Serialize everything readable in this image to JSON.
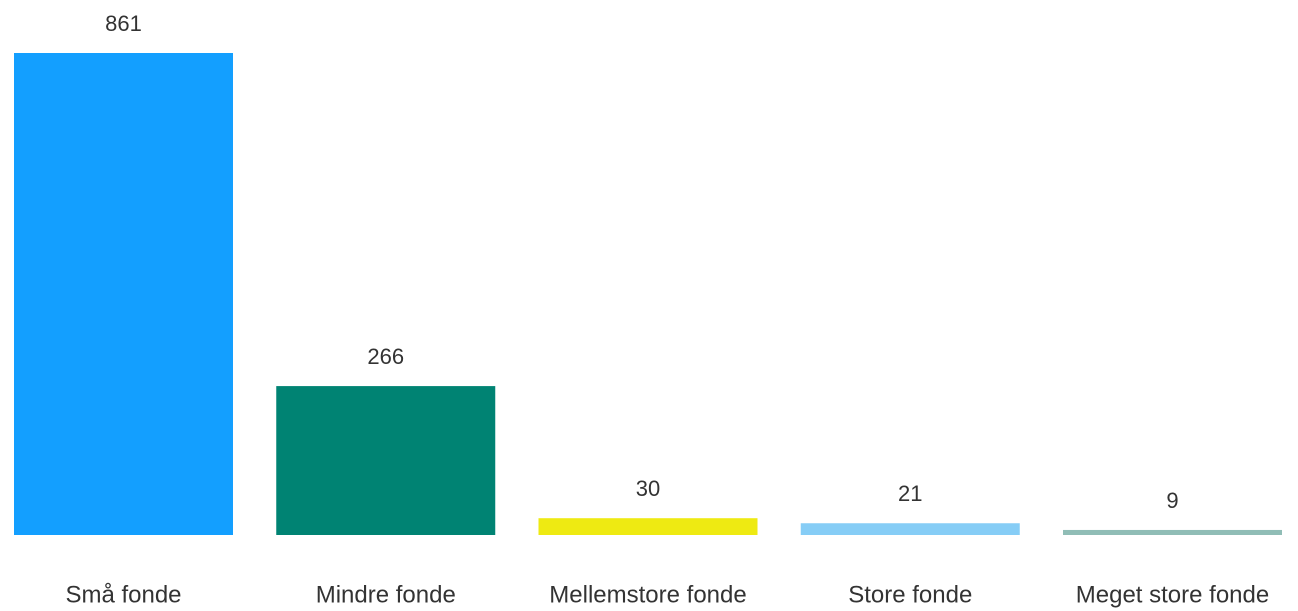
{
  "chart_data": {
    "type": "bar",
    "categories": [
      "Små fonde",
      "Mindre fonde",
      "Mellemstore fonde",
      "Store fonde",
      "Meget store fonde"
    ],
    "values": [
      861,
      266,
      30,
      21,
      9
    ],
    "colors": [
      "#139fff",
      "#008373",
      "#eeea12",
      "#86cdf6",
      "#90bdb6"
    ]
  }
}
